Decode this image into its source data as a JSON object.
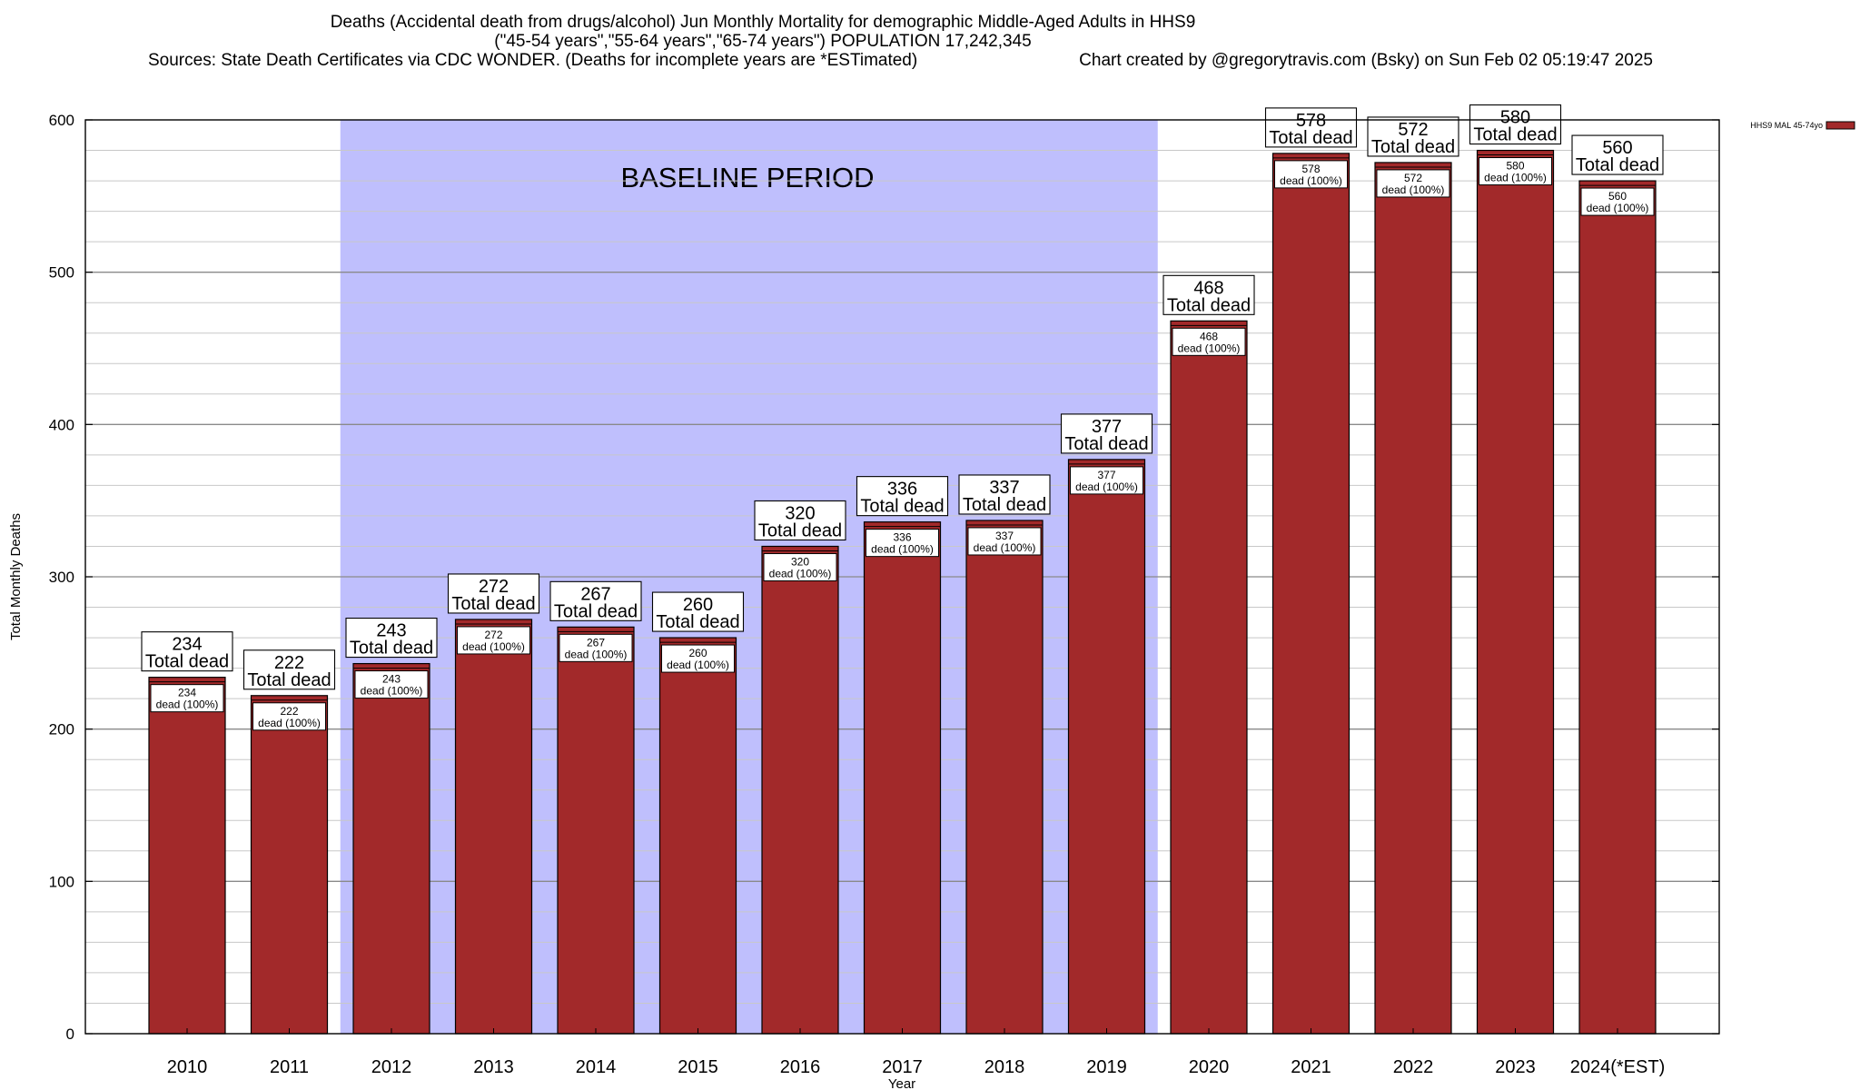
{
  "chart_data": {
    "type": "bar",
    "title_lines": [
      "Deaths (Accidental death from drugs/alcohol) Jun Monthly Mortality for demographic Middle-Aged Adults in HHS9",
      "(\"45-54 years\",\"55-64 years\",\"65-74 years\") POPULATION 17,242,345"
    ],
    "sources": "Sources: State Death Certificates via CDC WONDER. (Deaths for incomplete years are *ESTimated)",
    "credit": "Chart created by @gregorytravis.com (Bsky) on Sun Feb 02 05:19:47 2025",
    "xlabel": "Year",
    "ylabel": "Total Monthly Deaths",
    "ylim": [
      0,
      600
    ],
    "yticks": [
      0,
      100,
      200,
      300,
      400,
      500,
      600
    ],
    "categories": [
      "2010",
      "2011",
      "2012",
      "2013",
      "2014",
      "2015",
      "2016",
      "2017",
      "2018",
      "2019",
      "2020",
      "2021",
      "2022",
      "2023",
      "2024(*EST)"
    ],
    "series": [
      {
        "name": "HHS9 MAL 45-74yo",
        "color": "#a2292a",
        "values": [
          234,
          222,
          243,
          272,
          267,
          260,
          320,
          336,
          337,
          377,
          468,
          578,
          572,
          580,
          560
        ]
      }
    ],
    "top_label_suffix": "Total dead",
    "inner_label_suffix": "dead (100%)",
    "baseline": {
      "label": "BASELINE PERIOD",
      "from": "2012",
      "to": "2019",
      "color": "#bfbffd"
    },
    "legend_position": "top-right",
    "grid": true
  }
}
